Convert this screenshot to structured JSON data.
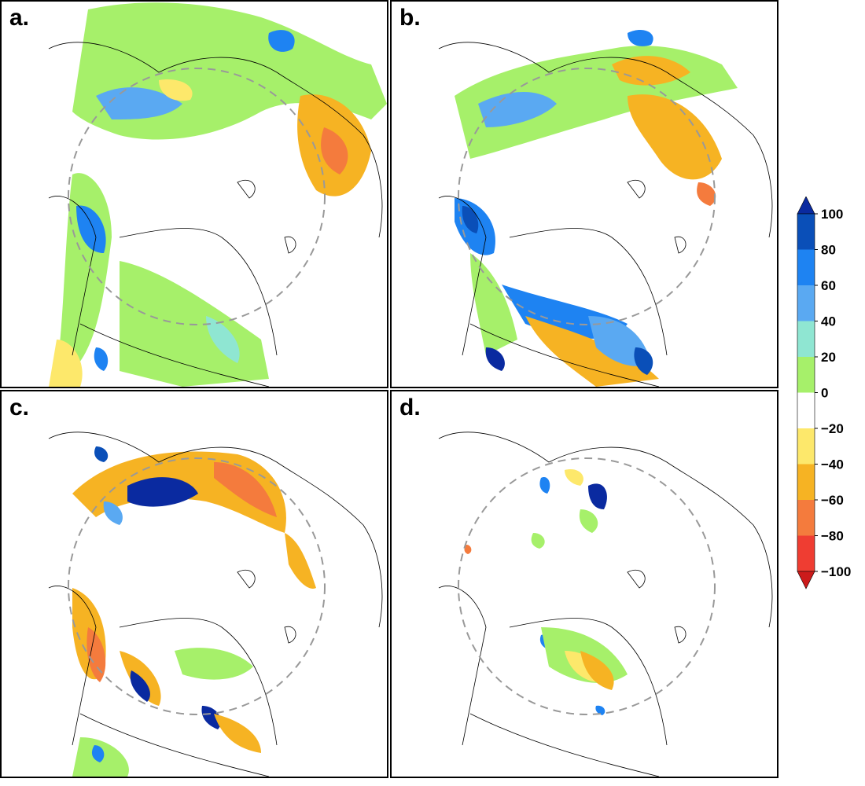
{
  "panels": [
    {
      "id": "a",
      "label": "a."
    },
    {
      "id": "b",
      "label": "b."
    },
    {
      "id": "c",
      "label": "c."
    },
    {
      "id": "d",
      "label": "d."
    }
  ],
  "colorbar": {
    "ticks": [
      "100",
      "80",
      "60",
      "40",
      "20",
      "0",
      "−20",
      "−40",
      "−60",
      "−80",
      "−100"
    ],
    "bins": [
      {
        "range": "80 to 100",
        "color": "#0a4fb8"
      },
      {
        "range": "60 to 80",
        "color": "#1e83f2"
      },
      {
        "range": "40 to 60",
        "color": "#5aa9f2"
      },
      {
        "range": "20 to 40",
        "color": "#8fe6d2"
      },
      {
        "range": "0 to 20",
        "color": "#a6f06a"
      },
      {
        "range": "-20 to 0",
        "color": "#ffffff"
      },
      {
        "range": "-40 to -20",
        "color": "#fde86b"
      },
      {
        "range": "-60 to -40",
        "color": "#f6b323"
      },
      {
        "range": "-80 to -60",
        "color": "#f47b3d"
      },
      {
        "range": "-100 to -80",
        "color": "#ef3d32"
      }
    ],
    "over_color": "#0a2aa0",
    "under_color": "#cc1b1b"
  },
  "colors": {
    "blue_dark": "#0a2aa0",
    "blue": "#1e83f2",
    "blue_light": "#5aa9f2",
    "cyan": "#8fe6d2",
    "green": "#a6f06a",
    "yellow": "#fde86b",
    "orange_light": "#f6b323",
    "orange": "#f47b3d",
    "red": "#ef3d32",
    "circle": "#999999"
  }
}
